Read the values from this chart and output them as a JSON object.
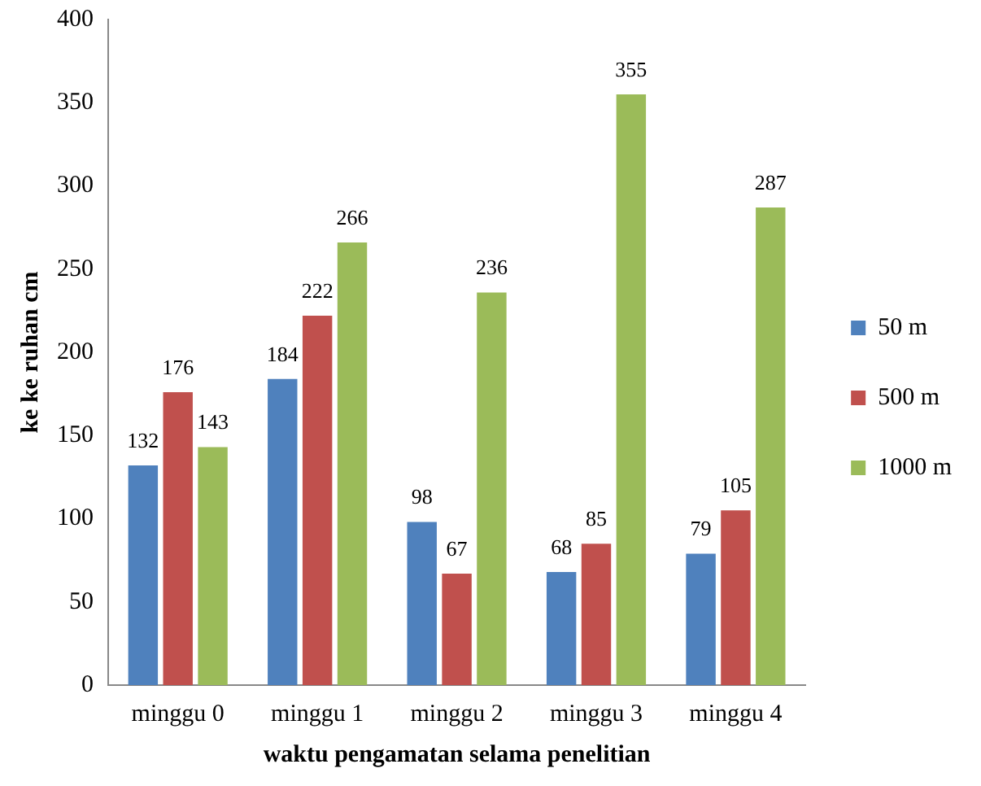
{
  "chart_data": {
    "type": "bar",
    "xlabel": "waktu pengamatan selama penelitian",
    "ylabel": "ke ke ruhan cm",
    "categories": [
      "minggu 0",
      "minggu 1",
      "minggu 2",
      "minggu 3",
      "minggu 4"
    ],
    "series": [
      {
        "name": "50 m",
        "color": "#4f81bd",
        "values": [
          132,
          184,
          98,
          68,
          79
        ]
      },
      {
        "name": "500 m",
        "color": "#c0504d",
        "values": [
          176,
          222,
          67,
          85,
          105
        ]
      },
      {
        "name": "1000 m",
        "color": "#9bbb59",
        "values": [
          143,
          266,
          236,
          355,
          287
        ]
      }
    ],
    "ylim": [
      0,
      400
    ],
    "yticks": [
      0,
      50,
      100,
      150,
      200,
      250,
      300,
      350,
      400
    ],
    "grid": false,
    "legend": "right",
    "data_labels": true
  }
}
